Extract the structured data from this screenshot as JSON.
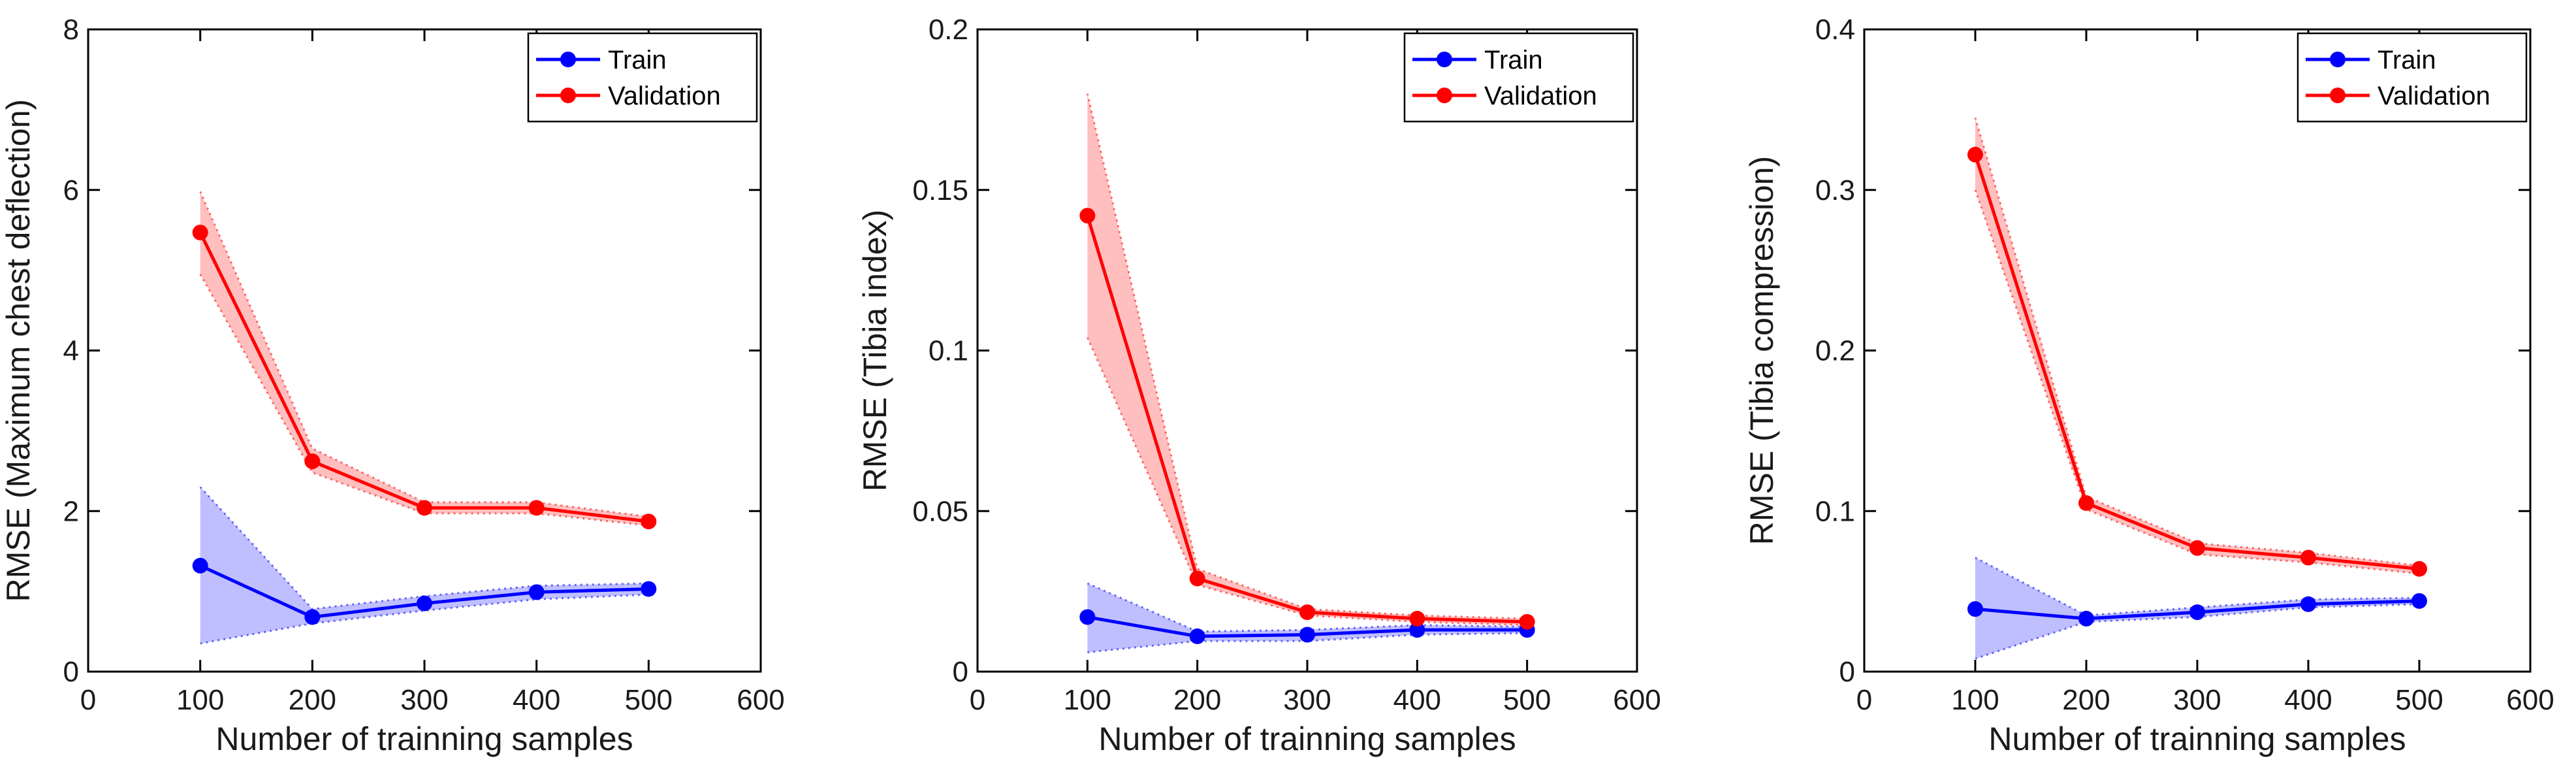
{
  "chart_data": [
    {
      "type": "line",
      "xlabel": "Number of trainning samples",
      "ylabel": "RMSE (Maximum chest deflection)",
      "xlim": [
        0,
        600
      ],
      "ylim": [
        0,
        8
      ],
      "xticks": [
        0,
        100,
        200,
        300,
        400,
        500,
        600
      ],
      "yticks": [
        0,
        2,
        4,
        6,
        8
      ],
      "xtick_labels": [
        "0",
        "100",
        "200",
        "300",
        "400",
        "500",
        "600"
      ],
      "ytick_labels": [
        "0",
        "2",
        "4",
        "6",
        "8"
      ],
      "legend_position": "top-right",
      "x": [
        100,
        200,
        300,
        400,
        500
      ],
      "series": [
        {
          "name": "Train",
          "color": "#0000ff",
          "band_color": "#7f7fff",
          "values": [
            1.32,
            0.68,
            0.85,
            0.99,
            1.03
          ],
          "lower": [
            0.35,
            0.6,
            0.76,
            0.9,
            0.96
          ],
          "upper": [
            2.3,
            0.78,
            0.94,
            1.07,
            1.1
          ]
        },
        {
          "name": "Validation",
          "color": "#ff0000",
          "band_color": "#ff7f7f",
          "values": [
            5.47,
            2.62,
            2.04,
            2.04,
            1.87
          ],
          "lower": [
            4.95,
            2.48,
            1.97,
            1.97,
            1.82
          ],
          "upper": [
            5.98,
            2.78,
            2.11,
            2.11,
            1.93
          ]
        }
      ]
    },
    {
      "type": "line",
      "xlabel": "Number of trainning samples",
      "ylabel": "RMSE (Tibia index)",
      "xlim": [
        0,
        600
      ],
      "ylim": [
        0,
        0.2
      ],
      "xticks": [
        0,
        100,
        200,
        300,
        400,
        500,
        600
      ],
      "yticks": [
        0,
        0.05,
        0.1,
        0.15,
        0.2
      ],
      "xtick_labels": [
        "0",
        "100",
        "200",
        "300",
        "400",
        "500",
        "600"
      ],
      "ytick_labels": [
        "0",
        "0.05",
        "0.1",
        "0.15",
        "0.2"
      ],
      "legend_position": "top-right",
      "x": [
        100,
        200,
        300,
        400,
        500
      ],
      "series": [
        {
          "name": "Train",
          "color": "#0000ff",
          "band_color": "#7f7fff",
          "values": [
            0.017,
            0.011,
            0.0115,
            0.013,
            0.013
          ],
          "lower": [
            0.006,
            0.0095,
            0.0095,
            0.0115,
            0.012
          ],
          "upper": [
            0.0275,
            0.0125,
            0.013,
            0.0145,
            0.014
          ]
        },
        {
          "name": "Validation",
          "color": "#ff0000",
          "band_color": "#ff7f7f",
          "values": [
            0.142,
            0.029,
            0.0185,
            0.0165,
            0.0155
          ],
          "lower": [
            0.104,
            0.027,
            0.0175,
            0.0155,
            0.0145
          ],
          "upper": [
            0.18,
            0.032,
            0.0195,
            0.0175,
            0.0165
          ]
        }
      ]
    },
    {
      "type": "line",
      "xlabel": "Number of trainning samples",
      "ylabel": "RMSE (Tibia compression)",
      "xlim": [
        0,
        600
      ],
      "ylim": [
        0,
        0.4
      ],
      "xticks": [
        0,
        100,
        200,
        300,
        400,
        500,
        600
      ],
      "yticks": [
        0,
        0.1,
        0.2,
        0.3,
        0.4
      ],
      "xtick_labels": [
        "0",
        "100",
        "200",
        "300",
        "400",
        "500",
        "600"
      ],
      "ytick_labels": [
        "0",
        "0.1",
        "0.2",
        "0.3",
        "0.4"
      ],
      "legend_position": "top-right",
      "x": [
        100,
        200,
        300,
        400,
        500
      ],
      "series": [
        {
          "name": "Train",
          "color": "#0000ff",
          "band_color": "#7f7fff",
          "values": [
            0.039,
            0.033,
            0.037,
            0.042,
            0.044
          ],
          "lower": [
            0.008,
            0.031,
            0.034,
            0.04,
            0.042
          ],
          "upper": [
            0.071,
            0.035,
            0.04,
            0.045,
            0.046
          ]
        },
        {
          "name": "Validation",
          "color": "#ff0000",
          "band_color": "#ff7f7f",
          "values": [
            0.322,
            0.105,
            0.077,
            0.071,
            0.064
          ],
          "lower": [
            0.3,
            0.101,
            0.073,
            0.068,
            0.061
          ],
          "upper": [
            0.345,
            0.109,
            0.08,
            0.074,
            0.066
          ]
        }
      ]
    }
  ]
}
